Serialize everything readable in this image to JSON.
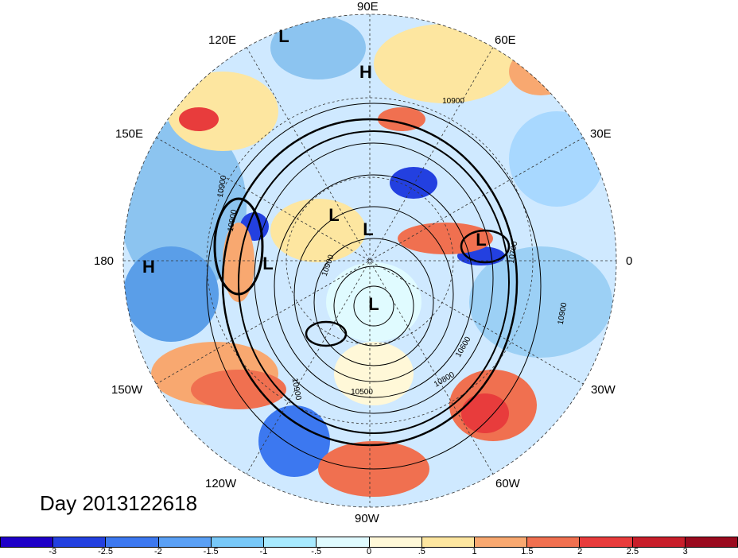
{
  "title": "Day 2013122618",
  "longitude_labels": {
    "e90": "90E",
    "e60": "60E",
    "e30": "30E",
    "zero": "0",
    "w30": "30W",
    "w60": "60W",
    "w90": "90W",
    "w120": "120W",
    "w150": "150W",
    "lon180": "180",
    "e150": "150E",
    "e120": "120E"
  },
  "pressure_centers": [
    {
      "label": "L"
    },
    {
      "label": "H"
    },
    {
      "label": "L"
    },
    {
      "label": "L"
    },
    {
      "label": "L"
    },
    {
      "label": "L"
    },
    {
      "label": "L"
    },
    {
      "label": "H"
    }
  ],
  "contour_labels": [
    "10900",
    "10900",
    "10900",
    "10900",
    "10700",
    "10900",
    "10800",
    "10600",
    "10500",
    "10900"
  ],
  "colorbar": {
    "colors": [
      "#1e00c8",
      "#2340e0",
      "#3c78f0",
      "#5aa0f5",
      "#78c8f8",
      "#a8eaff",
      "#e0fbff",
      "#fff8d8",
      "#fde6a0",
      "#f8a870",
      "#f07050",
      "#e83c3c",
      "#c81e2a",
      "#9a0a1e"
    ],
    "ticks": [
      "-3",
      "-2.5",
      "-2",
      "-1.5",
      "-1",
      "-.5",
      "0",
      ".5",
      "1",
      "1.5",
      "2",
      "2.5",
      "3"
    ]
  }
}
